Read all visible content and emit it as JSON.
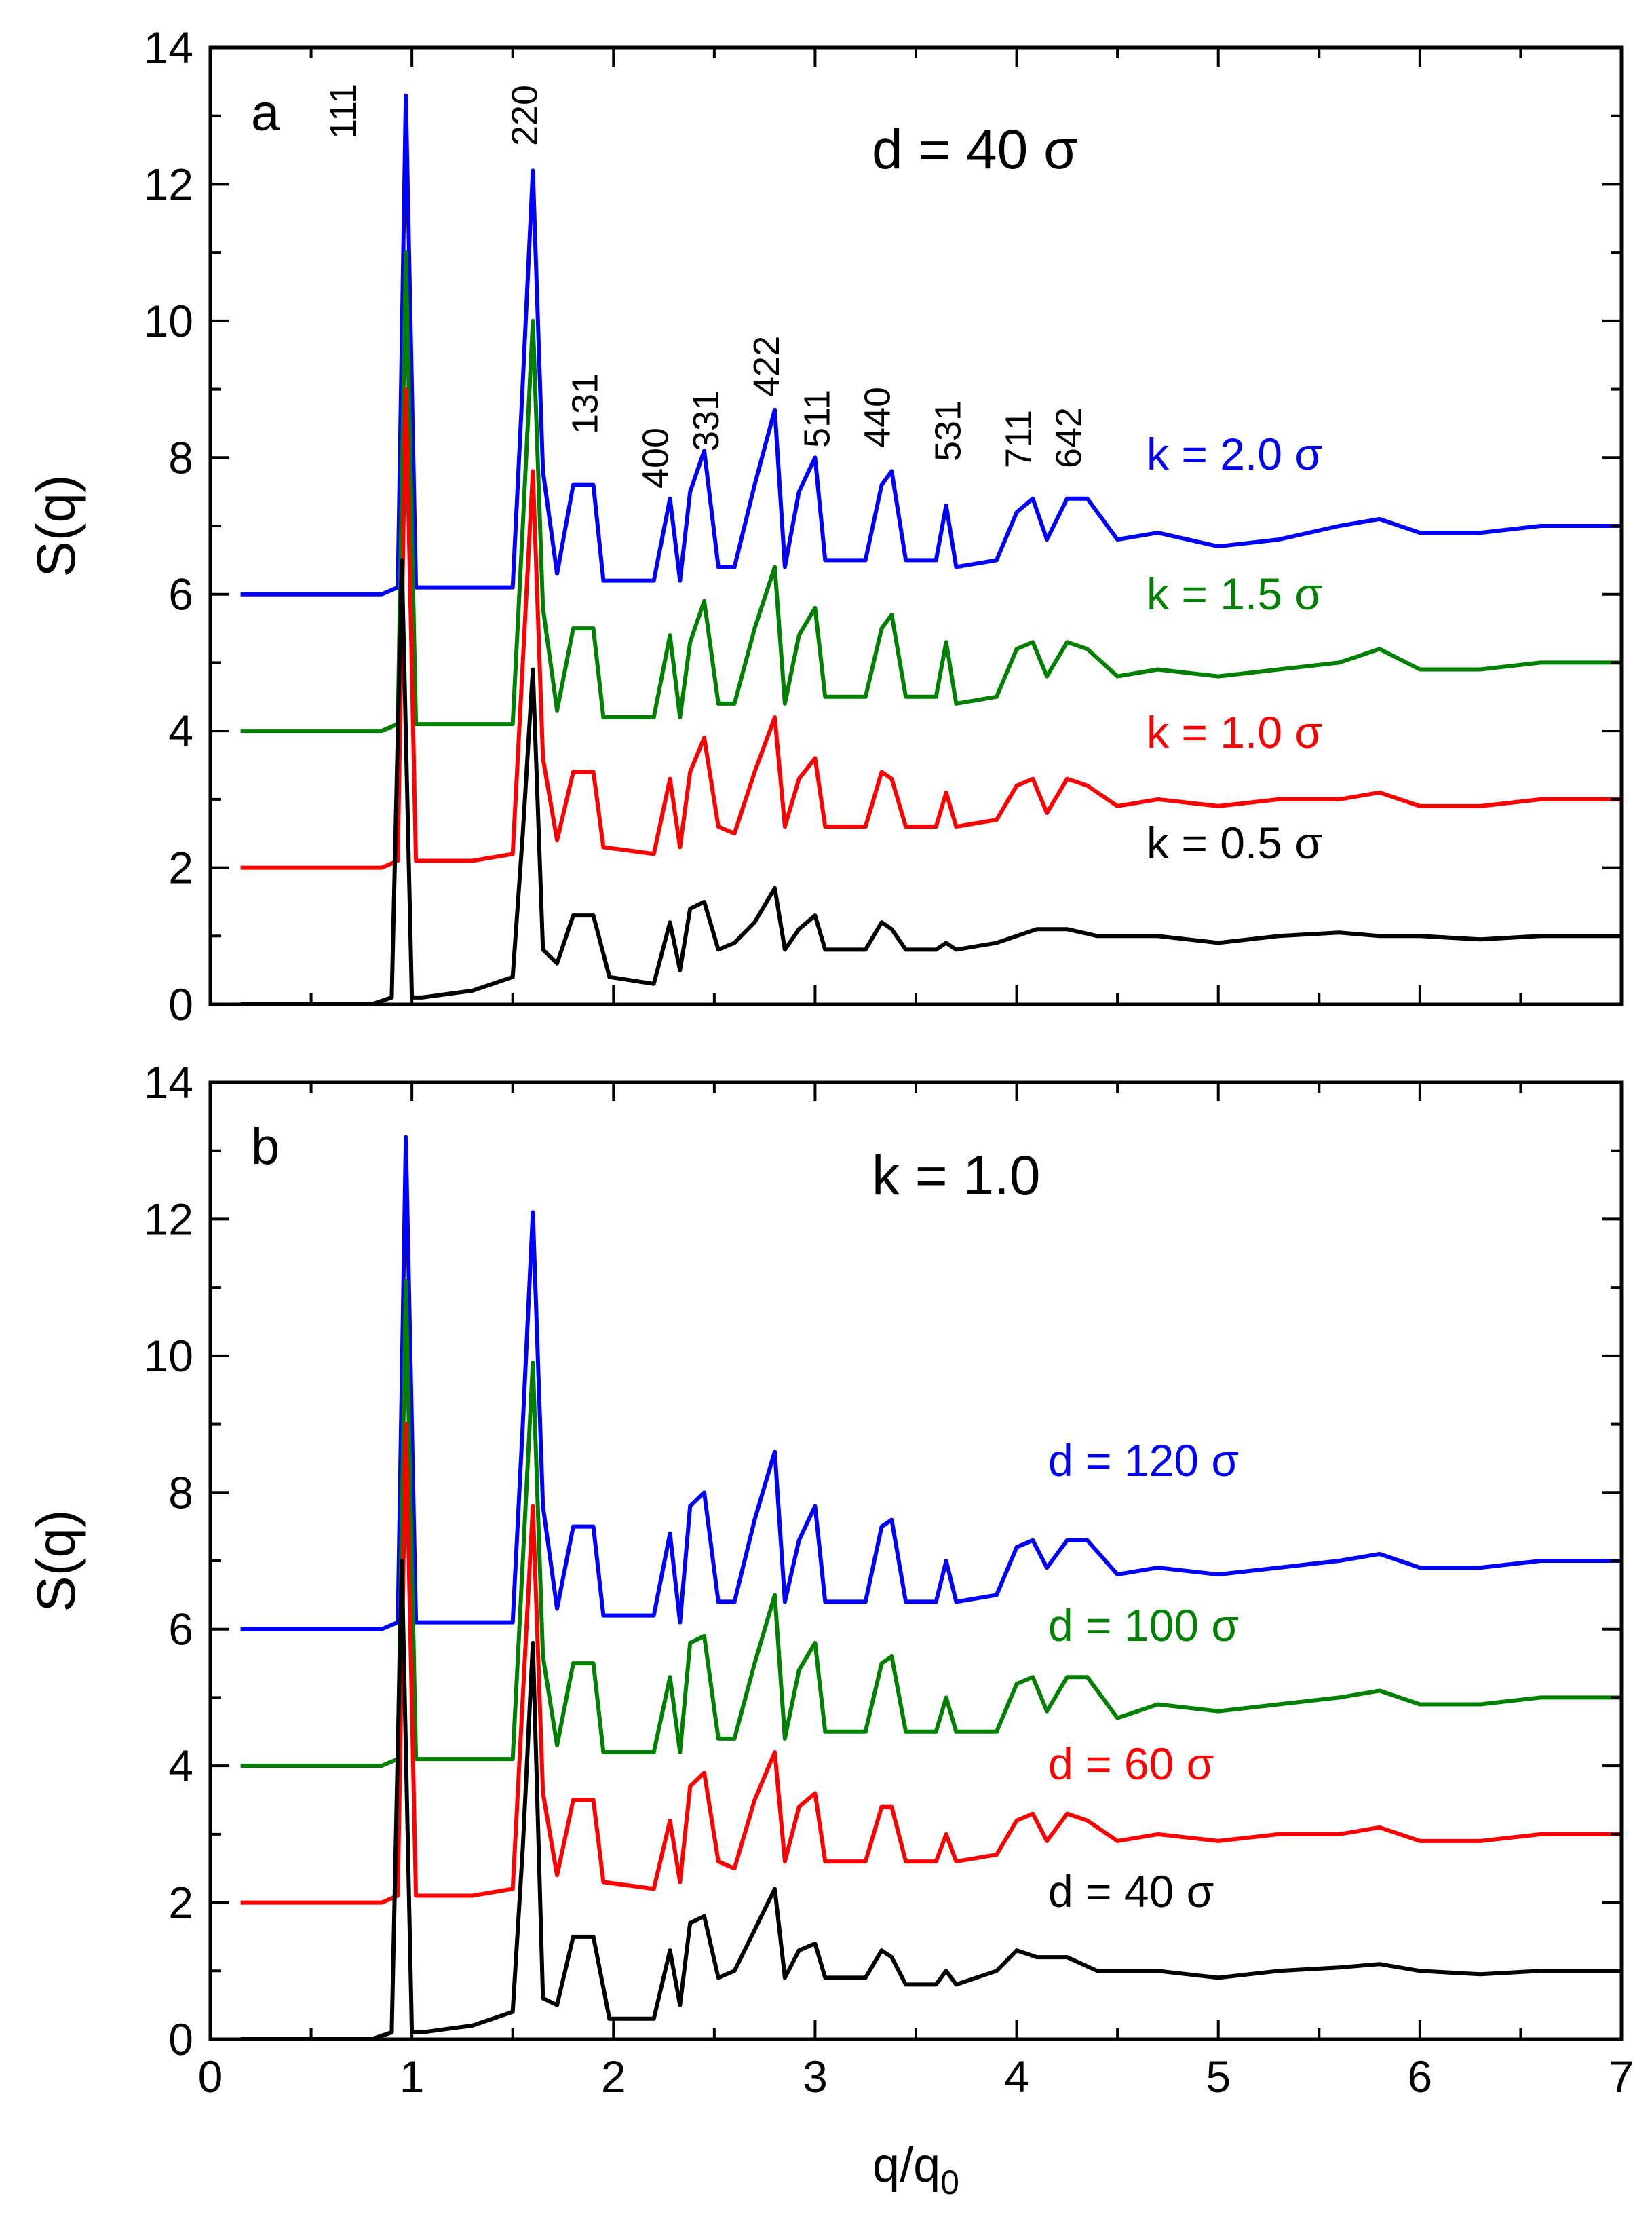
{
  "chart_data": [
    {
      "type": "line",
      "panel": "a",
      "title": "d = 40 σ",
      "xlabel": "",
      "ylabel": "S(q)",
      "xlim": [
        0,
        7
      ],
      "ylim": [
        0,
        14
      ],
      "xticks": [
        "0",
        "1",
        "2",
        "3",
        "4",
        "5",
        "6",
        "7"
      ],
      "yticks": [
        "0",
        "2",
        "4",
        "6",
        "8",
        "10",
        "12",
        "14"
      ],
      "peak_labels": [
        "111",
        "220",
        "131",
        "400",
        "331",
        "422",
        "511",
        "440",
        "531",
        "711",
        "642"
      ],
      "peak_positions": [
        0.7,
        1.6,
        1.9,
        2.25,
        2.5,
        2.8,
        3.05,
        3.35,
        3.7,
        4.05,
        4.3
      ],
      "series": [
        {
          "name": "k = 2.0 σ",
          "color": "#0000ff",
          "x": [
            0.15,
            0.5,
            0.85,
            0.93,
            0.97,
            1.02,
            1.3,
            1.5,
            1.55,
            1.6,
            1.65,
            1.72,
            1.8,
            1.9,
            1.95,
            2.2,
            2.28,
            2.33,
            2.38,
            2.45,
            2.52,
            2.6,
            2.7,
            2.8,
            2.85,
            2.92,
            3.0,
            3.05,
            3.25,
            3.33,
            3.38,
            3.45,
            3.6,
            3.65,
            3.7,
            3.9,
            4.0,
            4.08,
            4.15,
            4.25,
            4.35,
            4.5,
            4.7,
            5.0,
            5.3,
            5.6,
            5.8,
            6.0,
            6.3,
            6.6,
            7.0
          ],
          "y": [
            6.0,
            6.0,
            6.0,
            6.1,
            13.3,
            6.1,
            6.1,
            6.1,
            9.1,
            12.2,
            7.8,
            6.3,
            7.6,
            7.6,
            6.2,
            6.2,
            7.4,
            6.2,
            7.5,
            8.1,
            6.4,
            6.4,
            7.6,
            8.7,
            6.4,
            7.5,
            8.0,
            6.5,
            6.5,
            7.6,
            7.8,
            6.5,
            6.5,
            7.3,
            6.4,
            6.5,
            7.2,
            7.4,
            6.8,
            7.4,
            7.4,
            6.8,
            6.9,
            6.7,
            6.8,
            7.0,
            7.1,
            6.9,
            6.9,
            7.0,
            7.0
          ]
        },
        {
          "name": "k = 1.5 σ",
          "color": "#008000",
          "x": [
            0.15,
            0.5,
            0.85,
            0.93,
            0.97,
            1.02,
            1.3,
            1.5,
            1.55,
            1.6,
            1.65,
            1.72,
            1.8,
            1.9,
            1.95,
            2.2,
            2.28,
            2.33,
            2.38,
            2.45,
            2.52,
            2.6,
            2.7,
            2.8,
            2.85,
            2.92,
            3.0,
            3.05,
            3.25,
            3.33,
            3.38,
            3.45,
            3.6,
            3.65,
            3.7,
            3.9,
            4.0,
            4.08,
            4.15,
            4.25,
            4.35,
            4.5,
            4.7,
            5.0,
            5.3,
            5.6,
            5.8,
            6.0,
            6.3,
            6.6,
            7.0
          ],
          "y": [
            4.0,
            4.0,
            4.0,
            4.1,
            11.0,
            4.1,
            4.1,
            4.1,
            7.0,
            10.0,
            5.8,
            4.3,
            5.5,
            5.5,
            4.2,
            4.2,
            5.4,
            4.2,
            5.3,
            5.9,
            4.4,
            4.4,
            5.5,
            6.4,
            4.4,
            5.4,
            5.8,
            4.5,
            4.5,
            5.5,
            5.7,
            4.5,
            4.5,
            5.3,
            4.4,
            4.5,
            5.2,
            5.3,
            4.8,
            5.3,
            5.2,
            4.8,
            4.9,
            4.8,
            4.9,
            5.0,
            5.2,
            4.9,
            4.9,
            5.0,
            5.0
          ]
        },
        {
          "name": "k = 1.0 σ",
          "color": "#ff0000",
          "x": [
            0.15,
            0.5,
            0.85,
            0.93,
            0.97,
            1.02,
            1.3,
            1.5,
            1.55,
            1.6,
            1.65,
            1.72,
            1.8,
            1.9,
            1.95,
            2.2,
            2.28,
            2.33,
            2.38,
            2.45,
            2.52,
            2.6,
            2.7,
            2.8,
            2.85,
            2.92,
            3.0,
            3.05,
            3.25,
            3.33,
            3.38,
            3.45,
            3.6,
            3.65,
            3.7,
            3.9,
            4.0,
            4.08,
            4.15,
            4.25,
            4.35,
            4.5,
            4.7,
            5.0,
            5.3,
            5.6,
            5.8,
            6.0,
            6.3,
            6.6,
            7.0
          ],
          "y": [
            2.0,
            2.0,
            2.0,
            2.1,
            9.0,
            2.1,
            2.1,
            2.2,
            5.0,
            7.8,
            3.6,
            2.4,
            3.4,
            3.4,
            2.3,
            2.2,
            3.3,
            2.3,
            3.4,
            3.9,
            2.6,
            2.5,
            3.4,
            4.2,
            2.6,
            3.3,
            3.6,
            2.6,
            2.6,
            3.4,
            3.3,
            2.6,
            2.6,
            3.1,
            2.6,
            2.7,
            3.2,
            3.3,
            2.8,
            3.3,
            3.2,
            2.9,
            3.0,
            2.9,
            3.0,
            3.0,
            3.1,
            2.9,
            2.9,
            3.0,
            3.0
          ]
        },
        {
          "name": "k = 0.5 σ",
          "color": "#000000",
          "x": [
            0.15,
            0.5,
            0.8,
            0.9,
            0.95,
            1.0,
            1.05,
            1.3,
            1.5,
            1.55,
            1.6,
            1.65,
            1.72,
            1.8,
            1.9,
            1.98,
            2.2,
            2.28,
            2.33,
            2.38,
            2.45,
            2.52,
            2.6,
            2.7,
            2.8,
            2.85,
            2.92,
            3.0,
            3.05,
            3.25,
            3.33,
            3.38,
            3.45,
            3.6,
            3.65,
            3.7,
            3.9,
            4.0,
            4.1,
            4.25,
            4.4,
            4.7,
            5.0,
            5.3,
            5.6,
            5.8,
            6.0,
            6.3,
            6.6,
            7.0
          ],
          "y": [
            0.0,
            0.0,
            0.0,
            0.1,
            6.5,
            0.1,
            0.1,
            0.2,
            0.4,
            2.5,
            4.9,
            0.8,
            0.6,
            1.3,
            1.3,
            0.4,
            0.3,
            1.2,
            0.5,
            1.4,
            1.5,
            0.8,
            0.9,
            1.2,
            1.7,
            0.8,
            1.1,
            1.3,
            0.8,
            0.8,
            1.2,
            1.1,
            0.8,
            0.8,
            0.9,
            0.8,
            0.9,
            1.0,
            1.1,
            1.1,
            1.0,
            1.0,
            0.9,
            1.0,
            1.05,
            1.0,
            1.0,
            0.95,
            1.0,
            1.0
          ]
        }
      ]
    },
    {
      "type": "line",
      "panel": "b",
      "title": "k = 1.0",
      "xlabel": "q/q",
      "xlabel_subscript": "0",
      "ylabel": "S(q)",
      "xlim": [
        0,
        7
      ],
      "ylim": [
        0,
        14
      ],
      "xticks": [
        "0",
        "1",
        "2",
        "3",
        "4",
        "5",
        "6",
        "7"
      ],
      "yticks": [
        "0",
        "2",
        "4",
        "6",
        "8",
        "10",
        "12",
        "14"
      ],
      "series": [
        {
          "name": "d = 120 σ",
          "color": "#0000ff",
          "x": [
            0.15,
            0.5,
            0.85,
            0.93,
            0.97,
            1.02,
            1.3,
            1.5,
            1.55,
            1.6,
            1.65,
            1.72,
            1.8,
            1.9,
            1.95,
            2.2,
            2.28,
            2.33,
            2.38,
            2.45,
            2.52,
            2.6,
            2.7,
            2.8,
            2.85,
            2.92,
            3.0,
            3.05,
            3.25,
            3.33,
            3.38,
            3.45,
            3.6,
            3.65,
            3.7,
            3.9,
            4.0,
            4.08,
            4.15,
            4.25,
            4.35,
            4.5,
            4.7,
            5.0,
            5.3,
            5.6,
            5.8,
            6.0,
            6.3,
            6.6,
            7.0
          ],
          "y": [
            6.0,
            6.0,
            6.0,
            6.1,
            13.2,
            6.1,
            6.1,
            6.1,
            9.0,
            12.1,
            7.8,
            6.3,
            7.5,
            7.5,
            6.2,
            6.2,
            7.4,
            6.1,
            7.8,
            8.0,
            6.4,
            6.4,
            7.6,
            8.6,
            6.4,
            7.3,
            7.8,
            6.4,
            6.4,
            7.5,
            7.6,
            6.4,
            6.4,
            7.0,
            6.4,
            6.5,
            7.2,
            7.3,
            6.9,
            7.3,
            7.3,
            6.8,
            6.9,
            6.8,
            6.9,
            7.0,
            7.1,
            6.9,
            6.9,
            7.0,
            7.0
          ]
        },
        {
          "name": "d = 100 σ",
          "color": "#008000",
          "x": [
            0.15,
            0.5,
            0.85,
            0.93,
            0.97,
            1.02,
            1.3,
            1.5,
            1.55,
            1.6,
            1.65,
            1.72,
            1.8,
            1.9,
            1.95,
            2.2,
            2.28,
            2.33,
            2.38,
            2.45,
            2.52,
            2.6,
            2.7,
            2.8,
            2.85,
            2.92,
            3.0,
            3.05,
            3.25,
            3.33,
            3.38,
            3.45,
            3.6,
            3.65,
            3.7,
            3.9,
            4.0,
            4.08,
            4.15,
            4.25,
            4.35,
            4.5,
            4.7,
            5.0,
            5.3,
            5.6,
            5.8,
            6.0,
            6.3,
            6.6,
            7.0
          ],
          "y": [
            4.0,
            4.0,
            4.0,
            4.1,
            11.1,
            4.1,
            4.1,
            4.1,
            7.0,
            9.9,
            5.6,
            4.3,
            5.5,
            5.5,
            4.2,
            4.2,
            5.3,
            4.2,
            5.8,
            5.9,
            4.4,
            4.4,
            5.5,
            6.5,
            4.4,
            5.4,
            5.8,
            4.5,
            4.5,
            5.5,
            5.6,
            4.5,
            4.5,
            5.0,
            4.5,
            4.5,
            5.2,
            5.3,
            4.8,
            5.3,
            5.3,
            4.7,
            4.9,
            4.8,
            4.9,
            5.0,
            5.1,
            4.9,
            4.9,
            5.0,
            5.0
          ]
        },
        {
          "name": "d = 60 σ",
          "color": "#ff0000",
          "x": [
            0.15,
            0.5,
            0.85,
            0.93,
            0.97,
            1.02,
            1.3,
            1.5,
            1.55,
            1.6,
            1.65,
            1.72,
            1.8,
            1.9,
            1.95,
            2.2,
            2.28,
            2.33,
            2.38,
            2.45,
            2.52,
            2.6,
            2.7,
            2.8,
            2.85,
            2.92,
            3.0,
            3.05,
            3.25,
            3.33,
            3.38,
            3.45,
            3.6,
            3.65,
            3.7,
            3.9,
            4.0,
            4.08,
            4.15,
            4.25,
            4.35,
            4.5,
            4.7,
            5.0,
            5.3,
            5.6,
            5.8,
            6.0,
            6.3,
            6.6,
            7.0
          ],
          "y": [
            2.0,
            2.0,
            2.0,
            2.1,
            9.0,
            2.1,
            2.1,
            2.2,
            5.0,
            7.8,
            3.6,
            2.4,
            3.5,
            3.5,
            2.3,
            2.2,
            3.2,
            2.3,
            3.7,
            3.9,
            2.6,
            2.5,
            3.5,
            4.2,
            2.6,
            3.4,
            3.6,
            2.6,
            2.6,
            3.4,
            3.4,
            2.6,
            2.6,
            3.0,
            2.6,
            2.7,
            3.2,
            3.3,
            2.9,
            3.3,
            3.2,
            2.9,
            3.0,
            2.9,
            3.0,
            3.0,
            3.1,
            2.9,
            2.9,
            3.0,
            3.0
          ]
        },
        {
          "name": "d = 40 σ",
          "color": "#000000",
          "x": [
            0.15,
            0.5,
            0.8,
            0.9,
            0.95,
            1.0,
            1.05,
            1.3,
            1.5,
            1.55,
            1.6,
            1.65,
            1.72,
            1.8,
            1.9,
            1.98,
            2.2,
            2.28,
            2.33,
            2.38,
            2.45,
            2.52,
            2.6,
            2.7,
            2.8,
            2.85,
            2.92,
            3.0,
            3.05,
            3.25,
            3.33,
            3.38,
            3.45,
            3.6,
            3.65,
            3.7,
            3.9,
            4.0,
            4.1,
            4.25,
            4.4,
            4.7,
            5.0,
            5.3,
            5.6,
            5.8,
            6.0,
            6.3,
            6.6,
            7.0
          ],
          "y": [
            0.0,
            0.0,
            0.0,
            0.1,
            7.0,
            0.1,
            0.1,
            0.2,
            0.4,
            2.8,
            5.8,
            0.6,
            0.5,
            1.5,
            1.5,
            0.3,
            0.3,
            1.3,
            0.5,
            1.7,
            1.8,
            0.9,
            1.0,
            1.6,
            2.2,
            0.9,
            1.3,
            1.4,
            0.9,
            0.9,
            1.3,
            1.2,
            0.8,
            0.8,
            1.0,
            0.8,
            1.0,
            1.3,
            1.2,
            1.2,
            1.0,
            1.0,
            0.9,
            1.0,
            1.05,
            1.1,
            1.0,
            0.95,
            1.0,
            1.0
          ]
        }
      ]
    }
  ]
}
